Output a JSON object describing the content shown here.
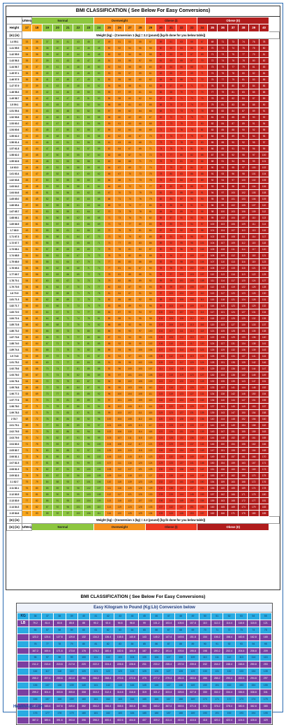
{
  "title": "BMI CLASSIFICATION ( See Below For Easy Conversions)",
  "header": {
    "col_height": "Height",
    "col_uw": "U/Weight",
    "col_normal": "Normal",
    "col_overweight": "Overweight",
    "col_obese1": "Obese (I)",
    "col_obese2": "Obese (II)",
    "col_m": "(m)",
    "col_in": "(in)",
    "weight_title": "Weight (kg)",
    "weight_note": "- (Conversion 1 (kg) = 2.2 (pound) [kg-lb done for you below table])",
    "bmi_values": [
      "17",
      "18",
      "19",
      "20",
      "21",
      "22",
      "23",
      "24",
      "25",
      "26",
      "27",
      "28",
      "29",
      "30",
      "31",
      "32",
      "33",
      "34",
      "35",
      "36",
      "37",
      "38",
      "39",
      "40"
    ]
  },
  "colors": {
    "underweight": "#f7a51c",
    "normal": "#8dc63f",
    "overweight": "#f6921e",
    "obese1": "#ee3a24",
    "obese2": "#b01c1c",
    "kg": "#29abe2",
    "lb": "#7b3fa0"
  },
  "conversion": {
    "section_title": "BMI CLASSIFICATION ( See Below For Easy Conversions)",
    "table_title": "Easy Kilogram to Pound (Kg:Lb) Conversion below",
    "kg_label": "KG",
    "lb_label": "LB"
  },
  "footer": "HealthAdo.com"
}
